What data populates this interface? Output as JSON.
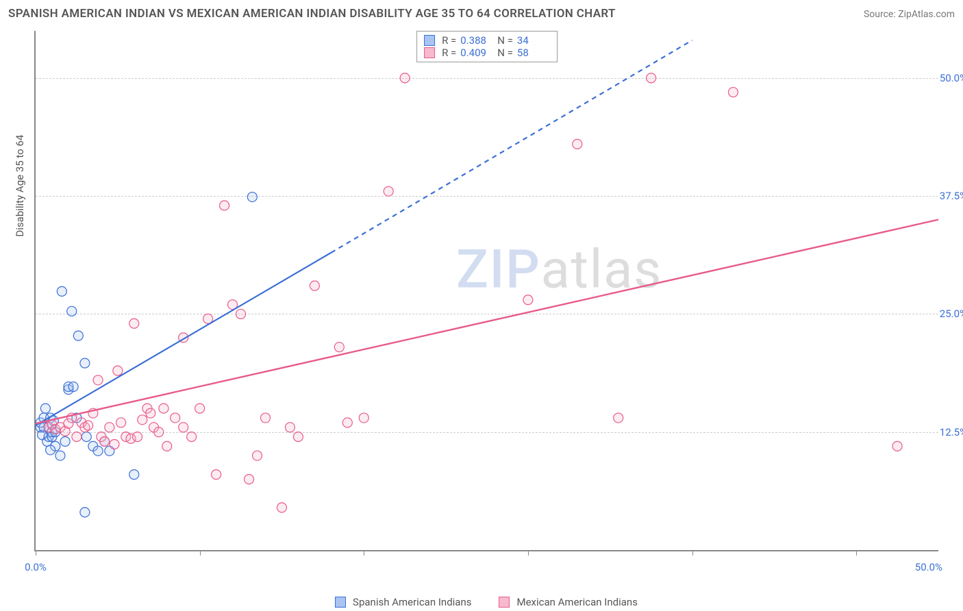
{
  "title": "SPANISH AMERICAN INDIAN VS MEXICAN AMERICAN INDIAN DISABILITY AGE 35 TO 64 CORRELATION CHART",
  "source_label": "Source: ZipAtlas.com",
  "y_axis_title": "Disability Age 35 to 64",
  "watermark": {
    "part1": "ZIP",
    "part2": "atlas"
  },
  "chart": {
    "type": "scatter",
    "xlim": [
      0,
      55
    ],
    "ylim": [
      0,
      55
    ],
    "x_tick_start": 0,
    "x_tick_step": 10,
    "x_tick_count": 6,
    "x_axis_min_label": "0.0%",
    "x_axis_max_label": "50.0%",
    "y_grid": [
      {
        "v": 12.5,
        "label": "12.5%"
      },
      {
        "v": 25.0,
        "label": "25.0%"
      },
      {
        "v": 37.5,
        "label": "37.5%"
      },
      {
        "v": 50.0,
        "label": "50.0%"
      }
    ],
    "background_color": "#ffffff",
    "grid_color": "#cccccc",
    "axis_color": "#888888",
    "tick_label_color": "#3b6fd6",
    "marker_radius": 7,
    "marker_stroke_width": 1.2,
    "marker_fill_opacity": 0.28,
    "series": [
      {
        "name": "Spanish American Indians",
        "color_stroke": "#3b6fd6",
        "color_fill": "#a9c4f2",
        "R_label": "R  =",
        "R": "0.388",
        "N_label": "N  =",
        "N": "34",
        "trend": {
          "solid": {
            "x1": 0,
            "y1": 13.2,
            "x2": 18,
            "y2": 31.5
          },
          "dashed": {
            "x1": 18,
            "y1": 31.5,
            "x2": 40,
            "y2": 54
          },
          "stroke_width": 2.2,
          "dash": "7 6"
        },
        "points": [
          [
            0.3,
            13.0
          ],
          [
            0.3,
            13.5
          ],
          [
            0.4,
            12.2
          ],
          [
            0.5,
            14.0
          ],
          [
            0.5,
            13.0
          ],
          [
            0.6,
            15.0
          ],
          [
            0.7,
            11.5
          ],
          [
            0.8,
            12.0
          ],
          [
            0.8,
            13.0
          ],
          [
            0.9,
            14.0
          ],
          [
            1.0,
            12.0
          ],
          [
            1.0,
            12.5
          ],
          [
            1.1,
            13.7
          ],
          [
            1.2,
            11.0
          ],
          [
            1.2,
            12.5
          ],
          [
            1.5,
            10.0
          ],
          [
            1.6,
            27.4
          ],
          [
            1.8,
            11.5
          ],
          [
            2.0,
            17.0
          ],
          [
            2.0,
            17.3
          ],
          [
            2.2,
            25.3
          ],
          [
            2.3,
            17.3
          ],
          [
            2.5,
            14.0
          ],
          [
            2.6,
            22.7
          ],
          [
            3.0,
            19.8
          ],
          [
            3.1,
            12.0
          ],
          [
            3.5,
            11.0
          ],
          [
            3.8,
            10.5
          ],
          [
            4.2,
            11.5
          ],
          [
            4.5,
            10.5
          ],
          [
            6.0,
            8.0
          ],
          [
            3.0,
            4.0
          ],
          [
            13.2,
            37.4
          ],
          [
            0.9,
            10.6
          ]
        ]
      },
      {
        "name": "Mexican American Indians",
        "color_stroke": "#e85b8a",
        "color_fill": "#f6b9cd",
        "R_label": "R  =",
        "R": "0.409",
        "N_label": "N  =",
        "N": "58",
        "trend": {
          "solid": {
            "x1": 0,
            "y1": 13.4,
            "x2": 55,
            "y2": 35.0
          },
          "stroke_width": 2.4
        },
        "points": [
          [
            0.8,
            13.0
          ],
          [
            1.0,
            13.3
          ],
          [
            1.2,
            12.8
          ],
          [
            1.5,
            13.0
          ],
          [
            1.8,
            12.6
          ],
          [
            2.0,
            13.4
          ],
          [
            2.2,
            14.0
          ],
          [
            2.5,
            12.0
          ],
          [
            2.8,
            13.5
          ],
          [
            3.0,
            13.0
          ],
          [
            3.2,
            13.2
          ],
          [
            3.5,
            14.5
          ],
          [
            3.8,
            18.0
          ],
          [
            4.0,
            12.0
          ],
          [
            4.2,
            11.5
          ],
          [
            4.5,
            13.0
          ],
          [
            4.8,
            11.2
          ],
          [
            5.0,
            19.0
          ],
          [
            5.2,
            13.5
          ],
          [
            5.5,
            12.0
          ],
          [
            5.8,
            11.8
          ],
          [
            6.0,
            24.0
          ],
          [
            6.2,
            12.0
          ],
          [
            6.5,
            13.8
          ],
          [
            6.8,
            15.0
          ],
          [
            7.0,
            14.5
          ],
          [
            7.2,
            13.0
          ],
          [
            7.5,
            12.5
          ],
          [
            7.8,
            15.0
          ],
          [
            8.0,
            11.0
          ],
          [
            8.5,
            14.0
          ],
          [
            9.0,
            13.0
          ],
          [
            9.0,
            22.5
          ],
          [
            9.5,
            12.0
          ],
          [
            10.0,
            15.0
          ],
          [
            10.5,
            24.5
          ],
          [
            11.0,
            8.0
          ],
          [
            11.5,
            36.5
          ],
          [
            12.0,
            26.0
          ],
          [
            12.5,
            25.0
          ],
          [
            13.0,
            7.5
          ],
          [
            13.5,
            10.0
          ],
          [
            14.0,
            14.0
          ],
          [
            15.0,
            4.5
          ],
          [
            15.5,
            13.0
          ],
          [
            16.0,
            12.0
          ],
          [
            17.0,
            28.0
          ],
          [
            18.5,
            21.5
          ],
          [
            19.0,
            13.5
          ],
          [
            20.0,
            14.0
          ],
          [
            21.5,
            38.0
          ],
          [
            22.5,
            50.0
          ],
          [
            30.0,
            26.5
          ],
          [
            33.0,
            43.0
          ],
          [
            35.5,
            14.0
          ],
          [
            37.5,
            50.0
          ],
          [
            42.5,
            48.5
          ],
          [
            52.5,
            11.0
          ]
        ]
      }
    ],
    "legend_bottom": [
      {
        "label": "Spanish American Indians",
        "fill": "#a9c4f2",
        "stroke": "#3b6fd6"
      },
      {
        "label": "Mexican American Indians",
        "fill": "#f6b9cd",
        "stroke": "#e85b8a"
      }
    ]
  }
}
